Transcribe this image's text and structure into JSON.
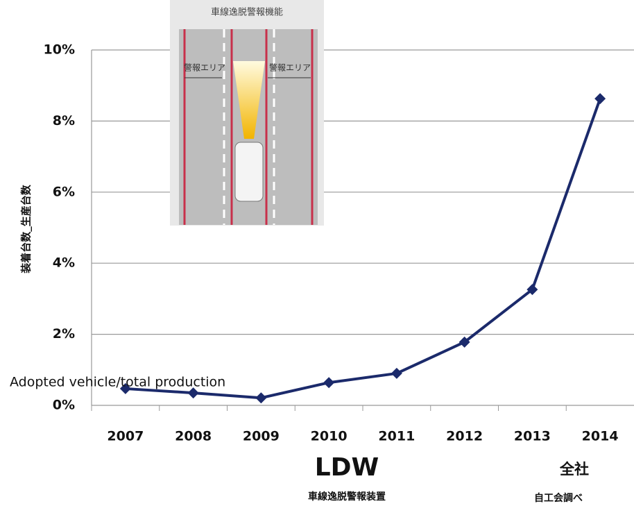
{
  "chart_data": {
    "type": "line",
    "y_label": "装着台数_生産台数",
    "annotation": "Adopted vehicle/total production",
    "x_title": "LDW",
    "x_subtitle": "車線逸脱警報装置",
    "company_label": "全社",
    "source": "自工会調べ",
    "inset_title": "車線逸脱警報機能",
    "inset_labels": [
      "警報エリア",
      "警報エリア"
    ],
    "categories": [
      "2007",
      "2008",
      "2009",
      "2010",
      "2011",
      "2012",
      "2013",
      "2014"
    ],
    "series": [
      {
        "name": "LDW",
        "color": "#1b2a6b",
        "values": [
          0.47,
          0.35,
          0.21,
          0.64,
          0.9,
          1.78,
          3.26,
          8.63
        ]
      }
    ],
    "ylim": [
      0,
      10
    ],
    "yticks": [
      {
        "value": 0,
        "label": "0%"
      },
      {
        "value": 2,
        "label": "2%"
      },
      {
        "value": 4,
        "label": "4%"
      },
      {
        "value": 6,
        "label": "6%"
      },
      {
        "value": 8,
        "label": "8%"
      },
      {
        "value": 10,
        "label": "10%"
      }
    ],
    "grid": true
  }
}
